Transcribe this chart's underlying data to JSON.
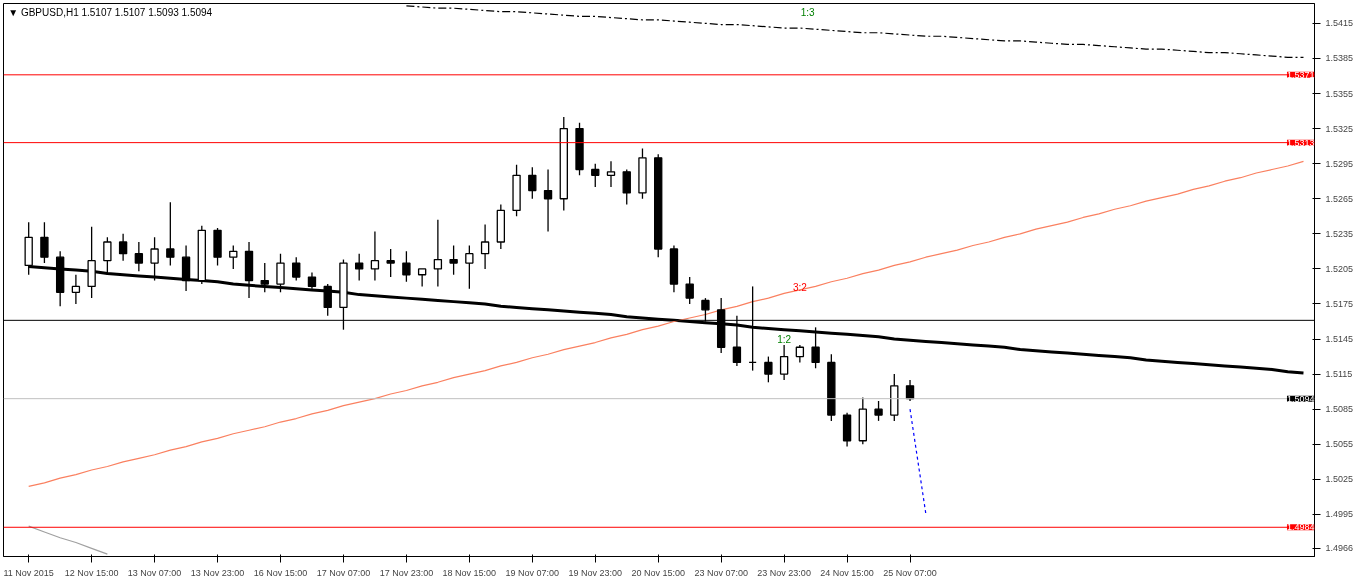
{
  "chart_data": {
    "type": "candlestick",
    "annotations": [
      "▼ GBPUSD,H1 1.5107 1.5107 1.5093 1.5094",
      "1:3",
      "3:2",
      "1:2"
    ],
    "categories": [
      "11 Nov 2015",
      null,
      null,
      null,
      "12 Nov 15:00",
      null,
      null,
      null,
      "13 Nov 07:00",
      null,
      null,
      null,
      "13 Nov 23:00",
      null,
      null,
      null,
      "16 Nov 15:00",
      null,
      null,
      null,
      "17 Nov 07:00",
      null,
      null,
      null,
      "17 Nov 23:00",
      null,
      null,
      null,
      "18 Nov 15:00",
      null,
      null,
      null,
      "19 Nov 07:00",
      null,
      null,
      null,
      "19 Nov 23:00",
      null,
      null,
      null,
      "20 Nov 15:00",
      null,
      null,
      null,
      "23 Nov 07:00",
      null,
      null,
      null,
      "23 Nov 23:00",
      null,
      null,
      null,
      "24 Nov 15:00",
      null,
      null,
      null,
      "25 Nov 07:00",
      null,
      null,
      null,
      null,
      null,
      null,
      null,
      null,
      null,
      null,
      null,
      null,
      null,
      null,
      null,
      null,
      null,
      null,
      null,
      null,
      null,
      null,
      null,
      null,
      null
    ],
    "ohlc": [
      [
        1.5208,
        1.5245,
        1.52,
        1.5232
      ],
      [
        1.5232,
        1.5245,
        1.521,
        1.5215
      ],
      [
        1.5215,
        1.522,
        1.5173,
        1.5185
      ],
      [
        1.5185,
        1.52,
        1.5175,
        1.519
      ],
      [
        1.519,
        1.5241,
        1.518,
        1.5212
      ],
      [
        1.5212,
        1.5232,
        1.52,
        1.5228
      ],
      [
        1.5228,
        1.5235,
        1.5212,
        1.5218
      ],
      [
        1.5218,
        1.5228,
        1.5203,
        1.521
      ],
      [
        1.521,
        1.5232,
        1.5195,
        1.5222
      ],
      [
        1.5222,
        1.5262,
        1.5208,
        1.5215
      ],
      [
        1.5215,
        1.5225,
        1.5186,
        1.5195
      ],
      [
        1.5195,
        1.5242,
        1.5192,
        1.5238
      ],
      [
        1.5238,
        1.524,
        1.5208,
        1.5215
      ],
      [
        1.5215,
        1.5225,
        1.5205,
        1.522
      ],
      [
        1.522,
        1.5228,
        1.518,
        1.5195
      ],
      [
        1.5195,
        1.521,
        1.5185,
        1.5192
      ],
      [
        1.5192,
        1.5218,
        1.5185,
        1.521
      ],
      [
        1.521,
        1.5215,
        1.5195,
        1.5198
      ],
      [
        1.5198,
        1.5202,
        1.5188,
        1.519
      ],
      [
        1.519,
        1.5192,
        1.5165,
        1.5172
      ],
      [
        1.5172,
        1.5213,
        1.5153,
        1.521
      ],
      [
        1.521,
        1.5218,
        1.5195,
        1.5205
      ],
      [
        1.5205,
        1.5237,
        1.5195,
        1.5212
      ],
      [
        1.5212,
        1.5222,
        1.5198,
        1.521
      ],
      [
        1.521,
        1.522,
        1.5194,
        1.52
      ],
      [
        1.52,
        1.5205,
        1.519,
        1.5205
      ],
      [
        1.5205,
        1.5247,
        1.519,
        1.5213
      ],
      [
        1.5213,
        1.5225,
        1.52,
        1.521
      ],
      [
        1.521,
        1.5225,
        1.5188,
        1.5218
      ],
      [
        1.5218,
        1.5243,
        1.5205,
        1.5228
      ],
      [
        1.5228,
        1.526,
        1.5222,
        1.5255
      ],
      [
        1.5255,
        1.5294,
        1.525,
        1.5285
      ],
      [
        1.5285,
        1.5292,
        1.5265,
        1.5272
      ],
      [
        1.5272,
        1.529,
        1.5237,
        1.5265
      ],
      [
        1.5265,
        1.5335,
        1.5255,
        1.5325
      ],
      [
        1.5325,
        1.533,
        1.5285,
        1.529
      ],
      [
        1.529,
        1.5295,
        1.5275,
        1.5285
      ],
      [
        1.5285,
        1.5297,
        1.5275,
        1.5288
      ],
      [
        1.5288,
        1.529,
        1.526,
        1.527
      ],
      [
        1.527,
        1.5308,
        1.5265,
        1.53
      ],
      [
        1.53,
        1.5303,
        1.5215,
        1.5222
      ],
      [
        1.5222,
        1.5225,
        1.5185,
        1.5192
      ],
      [
        1.5192,
        1.5198,
        1.5175,
        1.518
      ],
      [
        1.5178,
        1.518,
        1.516,
        1.517
      ],
      [
        1.517,
        1.518,
        1.5133,
        1.5138
      ],
      [
        1.5138,
        1.5165,
        1.5122,
        1.5125
      ],
      [
        1.5125,
        1.519,
        1.5118,
        1.5125
      ],
      [
        1.5125,
        1.513,
        1.5108,
        1.5115
      ],
      [
        1.5115,
        1.514,
        1.511,
        1.513
      ],
      [
        1.513,
        1.514,
        1.5125,
        1.5138
      ],
      [
        1.5138,
        1.5155,
        1.512,
        1.5125
      ],
      [
        1.5125,
        1.5132,
        1.5075,
        1.508
      ],
      [
        1.508,
        1.5082,
        1.5053,
        1.5058
      ],
      [
        1.5058,
        1.5095,
        1.5055,
        1.5085
      ],
      [
        1.5085,
        1.5092,
        1.5075,
        1.508
      ],
      [
        1.508,
        1.5115,
        1.5075,
        1.5105
      ],
      [
        1.5105,
        1.511,
        1.5092,
        1.5094
      ],
      null,
      null,
      null,
      null,
      null,
      null,
      null,
      null,
      null,
      null,
      null,
      null,
      null,
      null,
      null,
      null,
      null,
      null,
      null,
      null,
      null,
      null,
      null,
      null,
      null
    ],
    "series": [
      {
        "type": "line",
        "color": "#000000",
        "values": [
          1.5207,
          1.5206,
          1.5205,
          1.5204,
          1.5203,
          1.5201,
          1.52,
          1.5199,
          1.5198,
          1.5197,
          1.5196,
          1.5195,
          1.5194,
          1.5192,
          1.5191,
          1.519,
          1.5189,
          1.5188,
          1.5187,
          1.5186,
          1.5185,
          1.5183,
          1.5182,
          1.5181,
          1.518,
          1.5179,
          1.5178,
          1.5177,
          1.5176,
          1.5175,
          1.5173,
          1.5172,
          1.5171,
          1.517,
          1.5169,
          1.5168,
          1.5167,
          1.5166,
          1.5164,
          1.5163,
          1.5162,
          1.5161,
          1.516,
          1.5159,
          1.5158,
          1.5157,
          1.5155,
          1.5154,
          1.5153,
          1.5152,
          1.5151,
          1.515,
          1.5149,
          1.5148,
          1.5147,
          1.5145,
          1.5144,
          1.5143,
          1.5142,
          1.5141,
          1.514,
          1.5139,
          1.5138,
          1.5136,
          1.5135,
          1.5134,
          1.5133,
          1.5132,
          1.5131,
          1.513,
          1.5129,
          1.5127,
          1.5126,
          1.5125,
          1.5124,
          1.5123,
          1.5122,
          1.5121,
          1.512,
          1.5119,
          1.5117,
          1.5116
        ]
      },
      {
        "type": "line",
        "color": "#fa8060",
        "values": [
          1.5019,
          1.5022,
          1.5026,
          1.5029,
          1.5033,
          1.5036,
          1.504,
          1.5043,
          1.5046,
          1.505,
          1.5053,
          1.5057,
          1.506,
          1.5064,
          1.5067,
          1.507,
          1.5074,
          1.5077,
          1.5081,
          1.5084,
          1.5088,
          1.5091,
          1.5094,
          1.5098,
          1.5101,
          1.5105,
          1.5108,
          1.5112,
          1.5115,
          1.5118,
          1.5122,
          1.5125,
          1.5129,
          1.5132,
          1.5136,
          1.5139,
          1.5142,
          1.5146,
          1.5149,
          1.5153,
          1.5156,
          1.516,
          1.5163,
          1.5166,
          1.517,
          1.5173,
          1.5177,
          1.518,
          1.5184,
          1.5187,
          1.519,
          1.5194,
          1.5197,
          1.5201,
          1.5204,
          1.5208,
          1.5211,
          1.5215,
          1.5218,
          1.5221,
          1.5225,
          1.5228,
          1.5232,
          1.5235,
          1.5239,
          1.5242,
          1.5245,
          1.5249,
          1.5252,
          1.5256,
          1.5259,
          1.5263,
          1.5266,
          1.5269,
          1.5273,
          1.5276,
          1.528,
          1.5283,
          1.5287,
          1.529,
          1.5293,
          1.5297
        ]
      },
      {
        "type": "line",
        "color": "#000000",
        "line_style": "dashed",
        "values": [
          null,
          null,
          null,
          null,
          null,
          null,
          null,
          null,
          null,
          null,
          null,
          null,
          null,
          null,
          null,
          null,
          null,
          null,
          null,
          null,
          null,
          null,
          null,
          null,
          1.543,
          1.5429,
          1.5428,
          1.5428,
          1.5427,
          1.5426,
          1.5425,
          1.5425,
          1.5424,
          1.5423,
          1.5422,
          1.5421,
          1.5421,
          1.542,
          1.5419,
          1.5418,
          1.5418,
          1.5417,
          1.5416,
          1.5415,
          1.5414,
          1.5414,
          1.5413,
          1.5412,
          1.5411,
          1.5411,
          1.541,
          1.5409,
          1.5408,
          1.5407,
          1.5407,
          1.5406,
          1.5405,
          1.5404,
          1.5404,
          1.5403,
          1.5402,
          1.5401,
          1.54,
          1.54,
          1.5399,
          1.5398,
          1.5397,
          1.5397,
          1.5396,
          1.5395,
          1.5394,
          1.5393,
          1.5393,
          1.5392,
          1.5391,
          1.539,
          1.539,
          1.5389,
          1.5388,
          1.5387,
          1.5386,
          1.5386
        ]
      },
      {
        "type": "line",
        "color": "#0000ff",
        "line_style": "dotted",
        "values": [
          null,
          null,
          null,
          null,
          null,
          null,
          null,
          null,
          null,
          null,
          null,
          null,
          null,
          null,
          null,
          null,
          null,
          null,
          null,
          null,
          null,
          null,
          null,
          null,
          null,
          null,
          null,
          null,
          null,
          null,
          null,
          null,
          null,
          null,
          null,
          null,
          null,
          null,
          null,
          null,
          null,
          null,
          null,
          null,
          null,
          null,
          null,
          null,
          null,
          null,
          null,
          null,
          null,
          null,
          null,
          null,
          1.5085,
          1.4996,
          null,
          null,
          null,
          null,
          null,
          null,
          null,
          null,
          null,
          null,
          null,
          null,
          null,
          null,
          null,
          null,
          null,
          null,
          null,
          null,
          null,
          null,
          null,
          null
        ]
      },
      {
        "type": "line",
        "color": "#a0a0a0",
        "values": [
          1.4985,
          1.498,
          1.4975,
          1.4971,
          1.4966,
          1.4961,
          null,
          null,
          null,
          null,
          null,
          null,
          null,
          null,
          null,
          null,
          null,
          null,
          null,
          null,
          null,
          null,
          null,
          null,
          null,
          null,
          null,
          null,
          null,
          null,
          null,
          null,
          null,
          null,
          null,
          null,
          null,
          null,
          null,
          null,
          null,
          null,
          null,
          null,
          null,
          null,
          null,
          null,
          null,
          null,
          null,
          null,
          null,
          null,
          null,
          null,
          null,
          null,
          null,
          null,
          null,
          null,
          null,
          null,
          null,
          null,
          null,
          null,
          null,
          null,
          null,
          null,
          null,
          null,
          null,
          null,
          null,
          null,
          null,
          null,
          null,
          null
        ]
      }
    ],
    "ref_lines": [
      {
        "axis": "y",
        "value": 1.5371,
        "label": "1.5371",
        "color": "#ff0000"
      },
      {
        "axis": "y",
        "value": 1.5313,
        "label": "1.5313",
        "color": "#ff0000"
      },
      {
        "axis": "y",
        "value": 1.4984,
        "label": "1.4984",
        "color": "#ff0000"
      },
      {
        "axis": "y",
        "value": 1.5161,
        "color": "#000000"
      },
      {
        "axis": "y",
        "value": 1.5094,
        "label": "1.5094",
        "color": "#c0c0c0"
      }
    ],
    "ylim": [
      1.4959,
      1.5432
    ],
    "yticks": [
      1.4966,
      1.4995,
      1.5025,
      1.5055,
      1.5085,
      1.5115,
      1.5145,
      1.5175,
      1.5205,
      1.5235,
      1.5265,
      1.5295,
      1.5325,
      1.5355,
      1.5385,
      1.5415
    ],
    "grid": false
  }
}
